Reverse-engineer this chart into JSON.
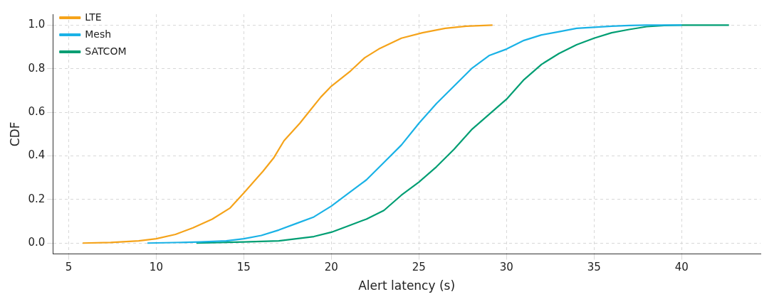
{
  "chart_data": {
    "type": "line",
    "xlabel": "Alert latency (s)",
    "ylabel": "CDF",
    "xlim": [
      4.1,
      44.5
    ],
    "ylim": [
      -0.05,
      1.05
    ],
    "xticks": [
      5,
      10,
      15,
      20,
      25,
      30,
      35,
      40
    ],
    "yticks": [
      {
        "value": 0,
        "label": "0.0"
      },
      {
        "value": 0.2,
        "label": "0.2"
      },
      {
        "value": 0.4,
        "label": "0.4"
      },
      {
        "value": 0.6,
        "label": "0.6"
      },
      {
        "value": 0.8,
        "label": "0.8"
      },
      {
        "value": 1,
        "label": "1.0"
      }
    ],
    "grid": true,
    "legend": "top left",
    "marker": "none",
    "line_style": "solid",
    "series": [
      {
        "name": "LTE",
        "color": "#f5a31a",
        "x": [
          5.8,
          7.4,
          9,
          10,
          11.1,
          12.1,
          13.2,
          14.2,
          15,
          16.1,
          16.7,
          17.3,
          18.2,
          18.8,
          19.4,
          20,
          21.1,
          21.9,
          22.7,
          24,
          25.2,
          26.5,
          27.7,
          29.2
        ],
        "values": [
          0,
          0.003,
          0.01,
          0.02,
          0.04,
          0.07,
          0.11,
          0.16,
          0.23,
          0.33,
          0.39,
          0.47,
          0.55,
          0.61,
          0.67,
          0.72,
          0.79,
          0.85,
          0.89,
          0.94,
          0.965,
          0.985,
          0.995,
          1
        ]
      },
      {
        "name": "Mesh",
        "color": "#1ab2e6",
        "x": [
          9.5,
          12.5,
          14,
          15,
          16,
          17,
          18,
          19,
          20,
          21,
          22,
          23,
          24,
          25,
          26,
          27,
          28,
          29,
          30,
          31,
          32,
          33,
          34,
          35,
          36,
          37,
          38,
          40
        ],
        "values": [
          0,
          0.005,
          0.01,
          0.02,
          0.035,
          0.06,
          0.09,
          0.12,
          0.17,
          0.23,
          0.29,
          0.37,
          0.45,
          0.55,
          0.64,
          0.72,
          0.8,
          0.86,
          0.89,
          0.93,
          0.955,
          0.97,
          0.985,
          0.99,
          0.995,
          0.998,
          1,
          1
        ]
      },
      {
        "name": "SATCOM",
        "color": "#009e73",
        "x": [
          12.3,
          15,
          17,
          18,
          19,
          20,
          21,
          22,
          23,
          24,
          25,
          26,
          27,
          28,
          29,
          30,
          31,
          32,
          33,
          34,
          35,
          36,
          37,
          38,
          39,
          40,
          42.7
        ],
        "values": [
          0,
          0.005,
          0.01,
          0.02,
          0.03,
          0.05,
          0.08,
          0.11,
          0.15,
          0.22,
          0.28,
          0.35,
          0.43,
          0.52,
          0.59,
          0.66,
          0.75,
          0.82,
          0.87,
          0.91,
          0.94,
          0.965,
          0.98,
          0.993,
          0.998,
          1,
          1
        ]
      }
    ]
  }
}
